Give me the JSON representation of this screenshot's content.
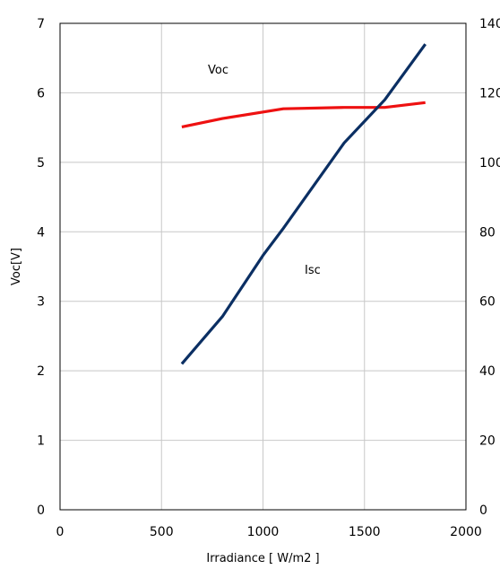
{
  "chart_data": {
    "type": "line",
    "xlabel": "Irradiance [ W/m2 ]",
    "ylabel": "Voc[V]",
    "xlim": [
      0,
      2000
    ],
    "ylim_left": [
      0,
      7
    ],
    "ylim_right": [
      0,
      140
    ],
    "x_ticks": [
      "0",
      "500",
      "1000",
      "1500",
      "2000"
    ],
    "y_left_ticks": [
      "0",
      "1",
      "2",
      "3",
      "4",
      "5",
      "6",
      "7"
    ],
    "y_right_ticks": [
      "0",
      "20",
      "40",
      "60",
      "80",
      "100",
      "120",
      "140"
    ],
    "grid": true,
    "series": [
      {
        "name": "Voc",
        "axis": "left",
        "color": "#ee1111",
        "x": [
          600,
          800,
          1100,
          1400,
          1600,
          1800
        ],
        "y": [
          5.51,
          5.63,
          5.77,
          5.79,
          5.79,
          5.86
        ]
      },
      {
        "name": "Isc",
        "axis": "right",
        "color": "#0b2f63",
        "x": [
          600,
          800,
          1000,
          1100,
          1400,
          1600,
          1800
        ],
        "y": [
          42,
          55.6,
          73.2,
          81,
          105.6,
          118,
          134
        ]
      }
    ]
  }
}
